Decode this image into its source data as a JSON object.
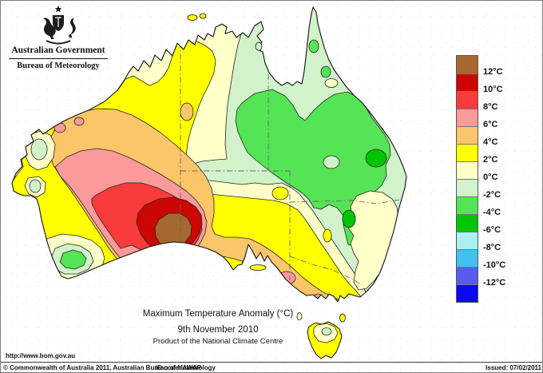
{
  "header": {
    "government": "Australian Government",
    "bureau": "Bureau of Meteorology"
  },
  "map": {
    "title": "Maximum Temperature Anomaly (°C)",
    "date": "9th November 2010",
    "product": "Product of the National Climate Centre",
    "readings": {
      "warmest": "+10 to +12°C anomaly centred on the south coast of Western Australia near the Great Australian Bight",
      "coolest": "-4 to -6°C anomaly pockets in inland Queensland and northern New South Wales"
    }
  },
  "legend": {
    "cells": [
      "#A5682E",
      "#CC0505",
      "#F93B3B",
      "#FA9A9A",
      "#FBC56A",
      "#FFFF00",
      "#FFFFC8",
      "#D2F2CC",
      "#55E455",
      "#00C400",
      "#AAF0F0",
      "#41C1F1",
      "#5A5AF0",
      "#0A0AF0"
    ],
    "labels": [
      "12°C",
      "10°C",
      "8°C",
      "6°C",
      "4°C",
      "2°C",
      "0°C",
      "-2°C",
      "-4°C",
      "-6°C",
      "-8°C",
      "-10°C",
      "-12°C"
    ]
  },
  "footer": {
    "url": "http://www.bom.gov.au",
    "copyright": "© Commonwealth of Australia 2011, Australian Bureau of Meteorology",
    "id_code": "ID code: AWAP",
    "issued": "Issued: 07/02/2011"
  },
  "palette": {
    "cream": "#FFFFC8",
    "yellow": "#FFFF00",
    "paleGreen": "#D2F2CC",
    "lightGreen": "#55E455",
    "green": "#00C400",
    "orange": "#FBC56A",
    "pink": "#FA9A9A",
    "red": "#F93B3B",
    "darkRed": "#CC0505",
    "brown": "#A5682E",
    "ink": "#1b1b1b"
  }
}
